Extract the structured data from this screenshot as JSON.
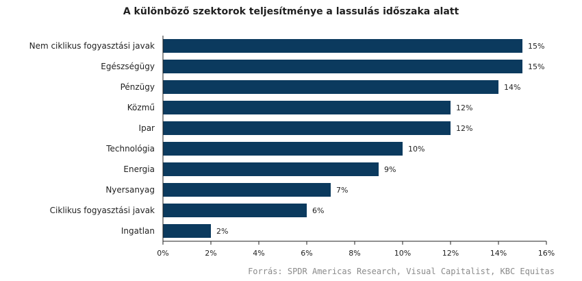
{
  "source": "Forrás: SPDR Americas Research, Visual Capitalist, KBC Equitas",
  "colors": {
    "bar": "#0b3a5e",
    "axis": "#222222",
    "text": "#1f1f1f",
    "source": "#8a8a8a"
  },
  "chart_data": {
    "type": "bar",
    "orientation": "horizontal",
    "title": "A különböző szektorok teljesítménye  a lassulás időszaka alatt",
    "xlabel": "",
    "ylabel": "",
    "categories": [
      "Nem ciklikus fogyasztási javak",
      "Egészségügy",
      "Pénzügy",
      "Közmű",
      "Ipar",
      "Technológia",
      "Energia",
      "Nyersanyag",
      "Ciklikus fogyasztási javak",
      "Ingatlan"
    ],
    "values": [
      15,
      15,
      14,
      12,
      12,
      10,
      9,
      7,
      6,
      2
    ],
    "value_labels": [
      "15%",
      "15%",
      "14%",
      "12%",
      "12%",
      "10%",
      "9%",
      "7%",
      "6%",
      "2%"
    ],
    "xlim": [
      0,
      16
    ],
    "xticks": [
      0,
      2,
      4,
      6,
      8,
      10,
      12,
      14,
      16
    ],
    "xtick_labels": [
      "0%",
      "2%",
      "4%",
      "6%",
      "8%",
      "10%",
      "12%",
      "14%",
      "16%"
    ],
    "grid": false,
    "legend": "none"
  }
}
